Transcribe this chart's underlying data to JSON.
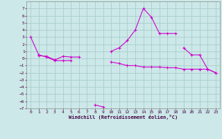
{
  "xlabel": "Windchill (Refroidissement éolien,°C)",
  "background_color": "#cce8e8",
  "grid_color": "#aacccc",
  "line_color": "#cc00cc",
  "x_values": [
    0,
    1,
    2,
    3,
    4,
    5,
    6,
    7,
    8,
    9,
    10,
    11,
    12,
    13,
    14,
    15,
    16,
    17,
    18,
    19,
    20,
    21,
    22,
    23
  ],
  "series1": [
    3.0,
    0.5,
    0.2,
    -0.3,
    -0.3,
    -0.3,
    null,
    null,
    -6.5,
    -6.8,
    null,
    null,
    null,
    null,
    null,
    null,
    null,
    null,
    null,
    null,
    null,
    null,
    null,
    null
  ],
  "series2": [
    null,
    0.4,
    0.3,
    -0.2,
    0.3,
    0.2,
    0.2,
    null,
    null,
    null,
    -0.5,
    -0.7,
    -1.0,
    -1.0,
    -1.2,
    -1.2,
    -1.2,
    -1.3,
    -1.3,
    -1.5,
    -1.5,
    -1.5,
    -1.5,
    -2.0
  ],
  "series3": [
    null,
    null,
    null,
    null,
    null,
    null,
    null,
    null,
    null,
    null,
    1.0,
    1.5,
    2.5,
    4.0,
    7.0,
    5.8,
    3.5,
    3.5,
    3.5,
    null,
    null,
    null,
    null,
    null
  ],
  "series4": [
    null,
    null,
    null,
    null,
    null,
    null,
    null,
    null,
    null,
    null,
    null,
    null,
    null,
    null,
    null,
    null,
    null,
    null,
    null,
    1.5,
    0.5,
    0.5,
    -1.5,
    -2.0
  ],
  "ylim": [
    -7,
    8
  ],
  "xlim": [
    -0.5,
    23.5
  ],
  "yticks": [
    7,
    6,
    5,
    4,
    3,
    2,
    1,
    0,
    -1,
    -2,
    -3,
    -4,
    -5,
    -6,
    -7
  ],
  "xticks": [
    0,
    1,
    2,
    3,
    4,
    5,
    6,
    7,
    8,
    9,
    10,
    11,
    12,
    13,
    14,
    15,
    16,
    17,
    18,
    19,
    20,
    21,
    22,
    23
  ]
}
